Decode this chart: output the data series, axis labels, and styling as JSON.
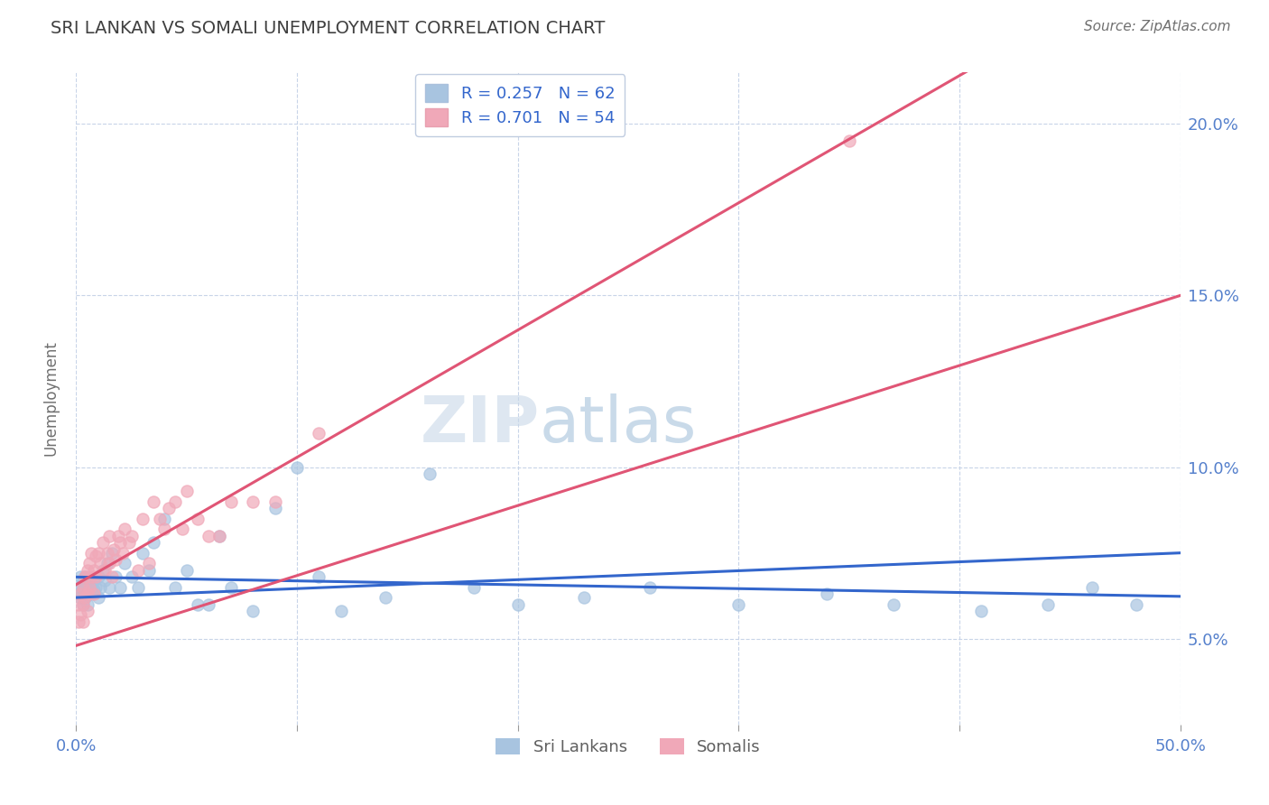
{
  "title": "SRI LANKAN VS SOMALI UNEMPLOYMENT CORRELATION CHART",
  "source_text": "Source: ZipAtlas.com",
  "ylabel": "Unemployment",
  "x_min": 0.0,
  "x_max": 0.5,
  "y_min": 0.025,
  "y_max": 0.215,
  "y_ticks": [
    0.05,
    0.1,
    0.15,
    0.2
  ],
  "y_tick_labels": [
    "5.0%",
    "10.0%",
    "15.0%",
    "20.0%"
  ],
  "x_ticks": [
    0.0,
    0.1,
    0.2,
    0.3,
    0.4,
    0.5
  ],
  "x_tick_labels": [
    "0.0%",
    "",
    "",
    "",
    "",
    "50.0%"
  ],
  "sri_lankan_color": "#a8c4e0",
  "somali_color": "#f0a8b8",
  "sri_lankan_line_color": "#3366cc",
  "somali_line_color": "#e05575",
  "sri_lankan_R": 0.257,
  "sri_lankan_N": 62,
  "somali_R": 0.701,
  "somali_N": 54,
  "watermark": "ZIPatlas",
  "background_color": "#ffffff",
  "grid_color": "#c8d4e8",
  "title_color": "#404040",
  "axis_label_color": "#5580cc",
  "legend_label_color": "#3366cc",
  "sri_lankans_x": [
    0.001,
    0.001,
    0.002,
    0.002,
    0.002,
    0.003,
    0.003,
    0.003,
    0.004,
    0.004,
    0.004,
    0.005,
    0.005,
    0.005,
    0.006,
    0.006,
    0.007,
    0.007,
    0.008,
    0.008,
    0.009,
    0.01,
    0.01,
    0.011,
    0.012,
    0.013,
    0.014,
    0.015,
    0.016,
    0.018,
    0.02,
    0.022,
    0.025,
    0.028,
    0.03,
    0.033,
    0.035,
    0.04,
    0.045,
    0.05,
    0.055,
    0.06,
    0.065,
    0.07,
    0.08,
    0.09,
    0.1,
    0.11,
    0.12,
    0.14,
    0.16,
    0.18,
    0.2,
    0.23,
    0.26,
    0.3,
    0.34,
    0.37,
    0.41,
    0.44,
    0.46,
    0.48
  ],
  "sri_lankans_y": [
    0.063,
    0.065,
    0.062,
    0.065,
    0.068,
    0.06,
    0.064,
    0.067,
    0.062,
    0.065,
    0.068,
    0.06,
    0.063,
    0.066,
    0.064,
    0.068,
    0.063,
    0.066,
    0.064,
    0.067,
    0.065,
    0.062,
    0.068,
    0.065,
    0.07,
    0.067,
    0.072,
    0.065,
    0.075,
    0.068,
    0.065,
    0.072,
    0.068,
    0.065,
    0.075,
    0.07,
    0.078,
    0.085,
    0.065,
    0.07,
    0.06,
    0.06,
    0.08,
    0.065,
    0.058,
    0.088,
    0.1,
    0.068,
    0.058,
    0.062,
    0.098,
    0.065,
    0.06,
    0.062,
    0.065,
    0.06,
    0.063,
    0.06,
    0.058,
    0.06,
    0.065,
    0.06
  ],
  "somalis_x": [
    0.001,
    0.001,
    0.002,
    0.002,
    0.003,
    0.003,
    0.003,
    0.004,
    0.004,
    0.005,
    0.005,
    0.005,
    0.006,
    0.006,
    0.007,
    0.007,
    0.008,
    0.008,
    0.009,
    0.009,
    0.01,
    0.011,
    0.012,
    0.013,
    0.014,
    0.015,
    0.015,
    0.016,
    0.017,
    0.018,
    0.019,
    0.02,
    0.021,
    0.022,
    0.024,
    0.025,
    0.028,
    0.03,
    0.033,
    0.035,
    0.038,
    0.04,
    0.042,
    0.045,
    0.048,
    0.05,
    0.055,
    0.06,
    0.065,
    0.07,
    0.08,
    0.09,
    0.11,
    0.35
  ],
  "somalis_y": [
    0.055,
    0.06,
    0.057,
    0.063,
    0.055,
    0.06,
    0.065,
    0.062,
    0.068,
    0.058,
    0.063,
    0.07,
    0.065,
    0.072,
    0.068,
    0.075,
    0.063,
    0.07,
    0.068,
    0.074,
    0.075,
    0.072,
    0.078,
    0.07,
    0.075,
    0.072,
    0.08,
    0.068,
    0.076,
    0.073,
    0.08,
    0.078,
    0.075,
    0.082,
    0.078,
    0.08,
    0.07,
    0.085,
    0.072,
    0.09,
    0.085,
    0.082,
    0.088,
    0.09,
    0.082,
    0.093,
    0.085,
    0.08,
    0.08,
    0.09,
    0.09,
    0.09,
    0.11,
    0.195
  ]
}
